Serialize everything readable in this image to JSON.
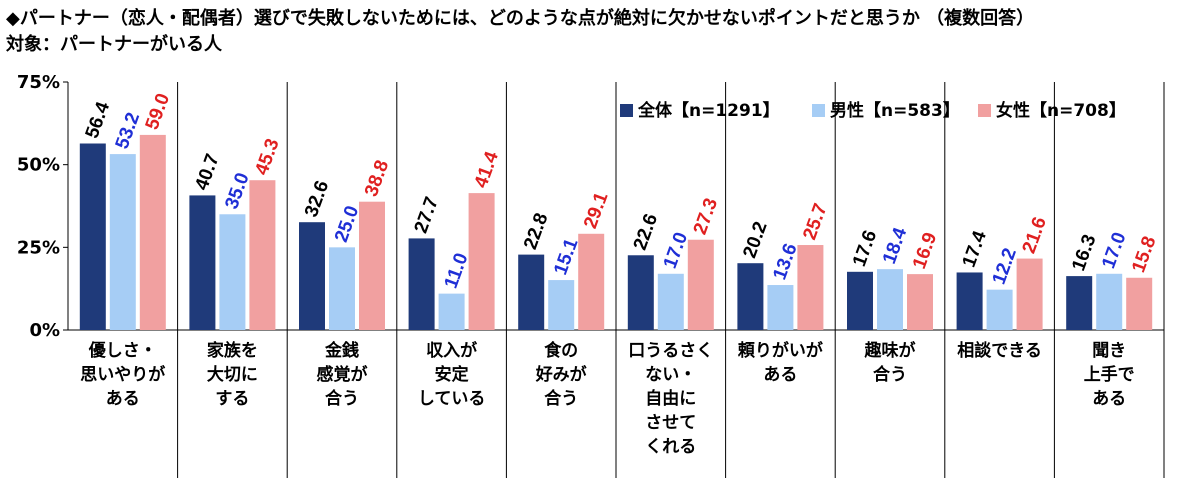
{
  "title": "◆パートナー（恋人・配偶者）選びで失敗しないためには、どのような点が絶対に欠かせないポイントだと思うか （複数回答）",
  "subtitle": "対象：パートナーがいる人",
  "chart_data": {
    "type": "bar",
    "categories": [
      "優しさ・思いやりがある",
      "家族を大切にする",
      "金銭感覚が合う",
      "収入が安定している",
      "食の好みが合う",
      "口うるさくない・自由にさせてくれる",
      "頼りがいがある",
      "趣味が合う",
      "相談できる",
      "聞き上手である"
    ],
    "category_lines": [
      [
        "優しさ・",
        "思いやりが",
        "ある"
      ],
      [
        "家族を",
        "大切に",
        "する"
      ],
      [
        "金銭",
        "感覚が",
        "合う"
      ],
      [
        "収入が",
        "安定",
        "している"
      ],
      [
        "食の",
        "好みが",
        "合う"
      ],
      [
        "口うるさく",
        "ない・",
        "自由に",
        "させて",
        "くれる"
      ],
      [
        "頼りがいが",
        "ある"
      ],
      [
        "趣味が",
        "合う"
      ],
      [
        "相談できる"
      ],
      [
        "聞き",
        "上手で",
        "ある"
      ]
    ],
    "series": [
      {
        "name": "全体【n=1291】",
        "color": "#1f3a7a",
        "label_color": "#000000",
        "values": [
          56.4,
          40.7,
          32.6,
          27.7,
          22.8,
          22.6,
          20.2,
          17.6,
          17.4,
          16.3
        ]
      },
      {
        "name": "男性【n=583】",
        "color": "#a6cdf5",
        "label_color": "#1f2fd6",
        "values": [
          53.2,
          35.0,
          25.0,
          11.0,
          15.1,
          17.0,
          13.6,
          18.4,
          12.2,
          17.0
        ]
      },
      {
        "name": "女性【n=708】",
        "color": "#f1a0a0",
        "label_color": "#e02020",
        "values": [
          59.0,
          45.3,
          38.8,
          41.4,
          29.1,
          27.3,
          25.7,
          16.9,
          21.6,
          15.8
        ]
      }
    ],
    "ylim": [
      0,
      75
    ],
    "yticks": [
      0,
      25,
      50,
      75
    ],
    "ytick_labels": [
      "0%",
      "25%",
      "50%",
      "75%"
    ],
    "legend": "top-right",
    "grid": false
  }
}
